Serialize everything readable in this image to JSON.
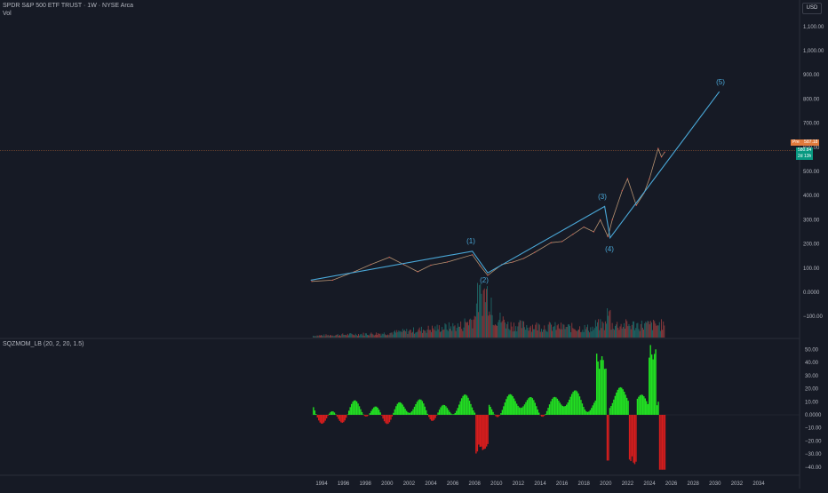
{
  "header": {
    "title": "SPDR S&P 500 ETF TRUST · 1W · NYSE Arca",
    "sub": "Vol",
    "indicator": "SQZMOM_LB (20, 2, 20, 1.5)"
  },
  "currency_button": "USD",
  "price_tags": {
    "pre_label": "Pre",
    "pre_value": "587.18",
    "last_value": "580.84",
    "countdown": "2d 13h"
  },
  "colors": {
    "background": "#161a25",
    "up": "#26a69a",
    "down": "#ef5350",
    "wave": "#4aa8d8",
    "sqz_up": "#22e022",
    "sqz_down": "#d81d1d",
    "pre_tag": "#e07a3c",
    "last_tag": "#089981"
  },
  "price_axis": [
    "1,100.00",
    "1,000.00",
    "900.00",
    "800.00",
    "700.00",
    "600.00",
    "500.00",
    "400.00",
    "300.00",
    "200.00",
    "100.00",
    "0.0000",
    "−100.00"
  ],
  "osc_axis": [
    "50.00",
    "40.00",
    "30.00",
    "20.00",
    "10.00",
    "0.0000",
    "−10.00",
    "−20.00",
    "−30.00",
    "−40.00"
  ],
  "time_axis": [
    "1994",
    "1996",
    "1998",
    "2000",
    "2002",
    "2004",
    "2006",
    "2008",
    "2010",
    "2012",
    "2014",
    "2016",
    "2018",
    "2020",
    "2022",
    "2024",
    "2026",
    "2028",
    "2030",
    "2032",
    "2034"
  ],
  "chart_data": {
    "type": "line",
    "series": [
      {
        "x": [
          1993.1,
          1995,
          1997,
          1998.5,
          2000.2,
          2001.5,
          2002.8,
          2004,
          2005.5,
          2007.8,
          2008.5,
          2009.2,
          2010.5,
          2011.5,
          2012.5,
          2013.5,
          2015,
          2016,
          2017,
          2018,
          2018.9,
          2019.5,
          2020.2,
          2020.6,
          2021.5,
          2022,
          2022.8,
          2023.5,
          2024,
          2024.8,
          2025.1,
          2025.4
        ],
        "values": [
          45,
          50,
          85,
          115,
          145,
          115,
          85,
          112,
          125,
          155,
          110,
          70,
          115,
          125,
          140,
          165,
          205,
          210,
          240,
          270,
          250,
          300,
          230,
          300,
          420,
          470,
          360,
          410,
          470,
          595,
          560,
          580
        ]
      }
    ],
    "waves": {
      "labels": [
        "(1)",
        "(2)",
        "(3)",
        "(4)",
        "(5)"
      ],
      "points": [
        [
          1993,
          50
        ],
        [
          2007.8,
          170
        ],
        [
          2009.2,
          80
        ],
        [
          2019.9,
          355
        ],
        [
          2020.4,
          225
        ],
        [
          2030.4,
          830
        ]
      ]
    },
    "ylim": [
      -100,
      1100
    ],
    "xlim": [
      1992,
      2036
    ]
  }
}
